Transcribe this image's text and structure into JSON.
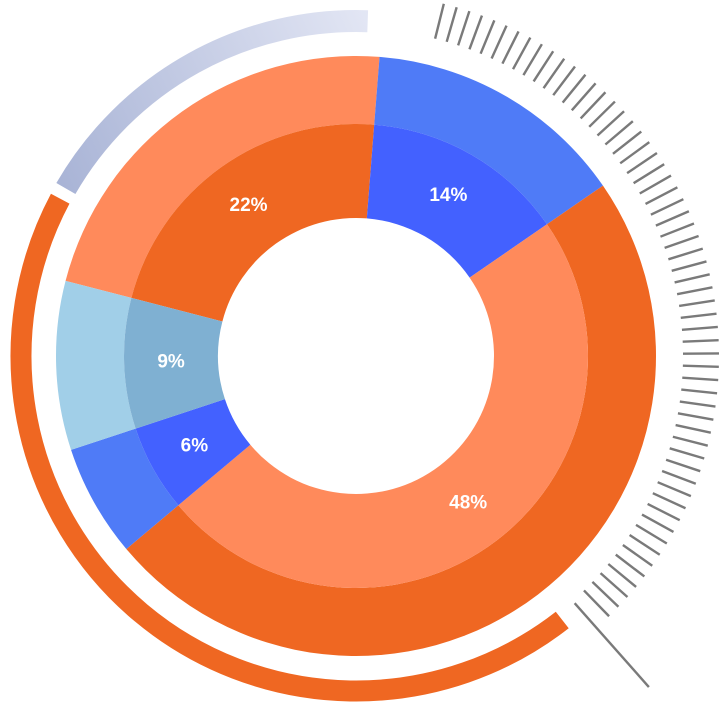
{
  "chart_data": {
    "type": "pie",
    "title": "",
    "slices": [
      {
        "label": "22%",
        "value": 22,
        "inner_color": "#EF6722",
        "outer_color": "#FF8A5B"
      },
      {
        "label": "14%",
        "value": 14,
        "inner_color": "#4361FF",
        "outer_color": "#4F7BF7"
      },
      {
        "label": "48%",
        "value": 48,
        "inner_color": "#FF8A5B",
        "outer_color": "#EF6722"
      },
      {
        "label": "6%",
        "value": 6,
        "inner_color": "#4361FF",
        "outer_color": "#4F7BF7"
      },
      {
        "label": "9%",
        "value": 9,
        "inner_color": "#7FB0D2",
        "outer_color": "#A1CFE8"
      }
    ],
    "decorations": {
      "orange_arc_color": "#EF6722",
      "blue_gradient_start": "#A9B4D6",
      "blue_gradient_end": "#EEF0FA",
      "tick_color": "#7A7A7A"
    }
  }
}
